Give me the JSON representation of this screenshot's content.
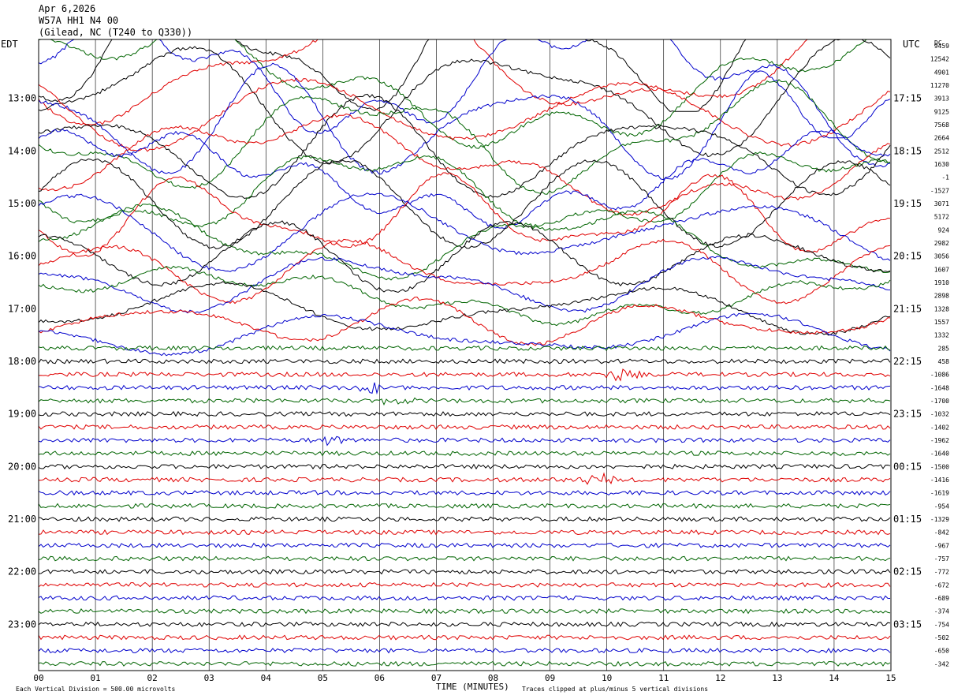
{
  "header": {
    "date": "Apr 6,2026",
    "station": "W57A HH1 N4 00",
    "location": "(Gilead, NC (T240 to Q330))"
  },
  "left_label": "EDT",
  "right_label": "UTC",
  "dc_label": "DC",
  "footer": {
    "scale": "Each Vertical Division =  500.00 microvolts",
    "xlabel": "TIME (MINUTES)",
    "clip_note": "Traces clipped at plus/minus 5 vertical divisions"
  },
  "colors": {
    "black": "#000000",
    "red": "#e00000",
    "blue": "#0000cc",
    "green": "#006400"
  },
  "chart_data": {
    "type": "line",
    "title": "Apr 6,2026 W57A HH1 N4 00 (Gilead, NC (T240 to Q330))",
    "xlabel": "TIME (MINUTES)",
    "ylabel": "",
    "xlim": [
      0,
      15
    ],
    "x_ticks": [
      "00",
      "01",
      "02",
      "03",
      "04",
      "05",
      "06",
      "07",
      "08",
      "09",
      "10",
      "11",
      "12",
      "13",
      "14",
      "15"
    ],
    "edt_ticks": [
      "13:00",
      "14:00",
      "15:00",
      "16:00",
      "17:00",
      "18:00",
      "19:00",
      "20:00",
      "21:00",
      "22:00",
      "23:00"
    ],
    "utc_ticks": [
      "17:15",
      "18:15",
      "19:15",
      "20:15",
      "21:15",
      "22:15",
      "23:15",
      "00:15",
      "01:15",
      "02:15",
      "03:15"
    ],
    "color_cycle": [
      "black",
      "red",
      "blue",
      "green"
    ],
    "dc_offsets": [
      "9459",
      "12542",
      "4901",
      "11270",
      "3913",
      "9125",
      "7568",
      "2664",
      "2512",
      "1630",
      "-1",
      "-1527",
      "3071",
      "5172",
      "924",
      "2982",
      "3056",
      "1607",
      "1910",
      "2898",
      "1328",
      "1557",
      "1332",
      "285",
      "458",
      "-1086",
      "-1648",
      "-1700",
      "-1032",
      "-1402",
      "-1962",
      "-1640",
      "-1500",
      "-1416",
      "-1619",
      "-954",
      "-1329",
      "-842",
      "-967",
      "-757",
      "-772",
      "-672",
      "-689",
      "-374",
      "-754",
      "-502",
      "-650",
      "-342"
    ],
    "clipped_rows": 23,
    "events": [
      {
        "row": 26,
        "minute": 5.9,
        "label": ""
      },
      {
        "row": 27,
        "minute": 6.3,
        "label": ""
      },
      {
        "row": 30,
        "minute": 5.2,
        "label": ""
      },
      {
        "row": 25,
        "minute": 10.2,
        "label": ""
      },
      {
        "row": 33,
        "minute": 9.8,
        "label": ""
      }
    ]
  }
}
